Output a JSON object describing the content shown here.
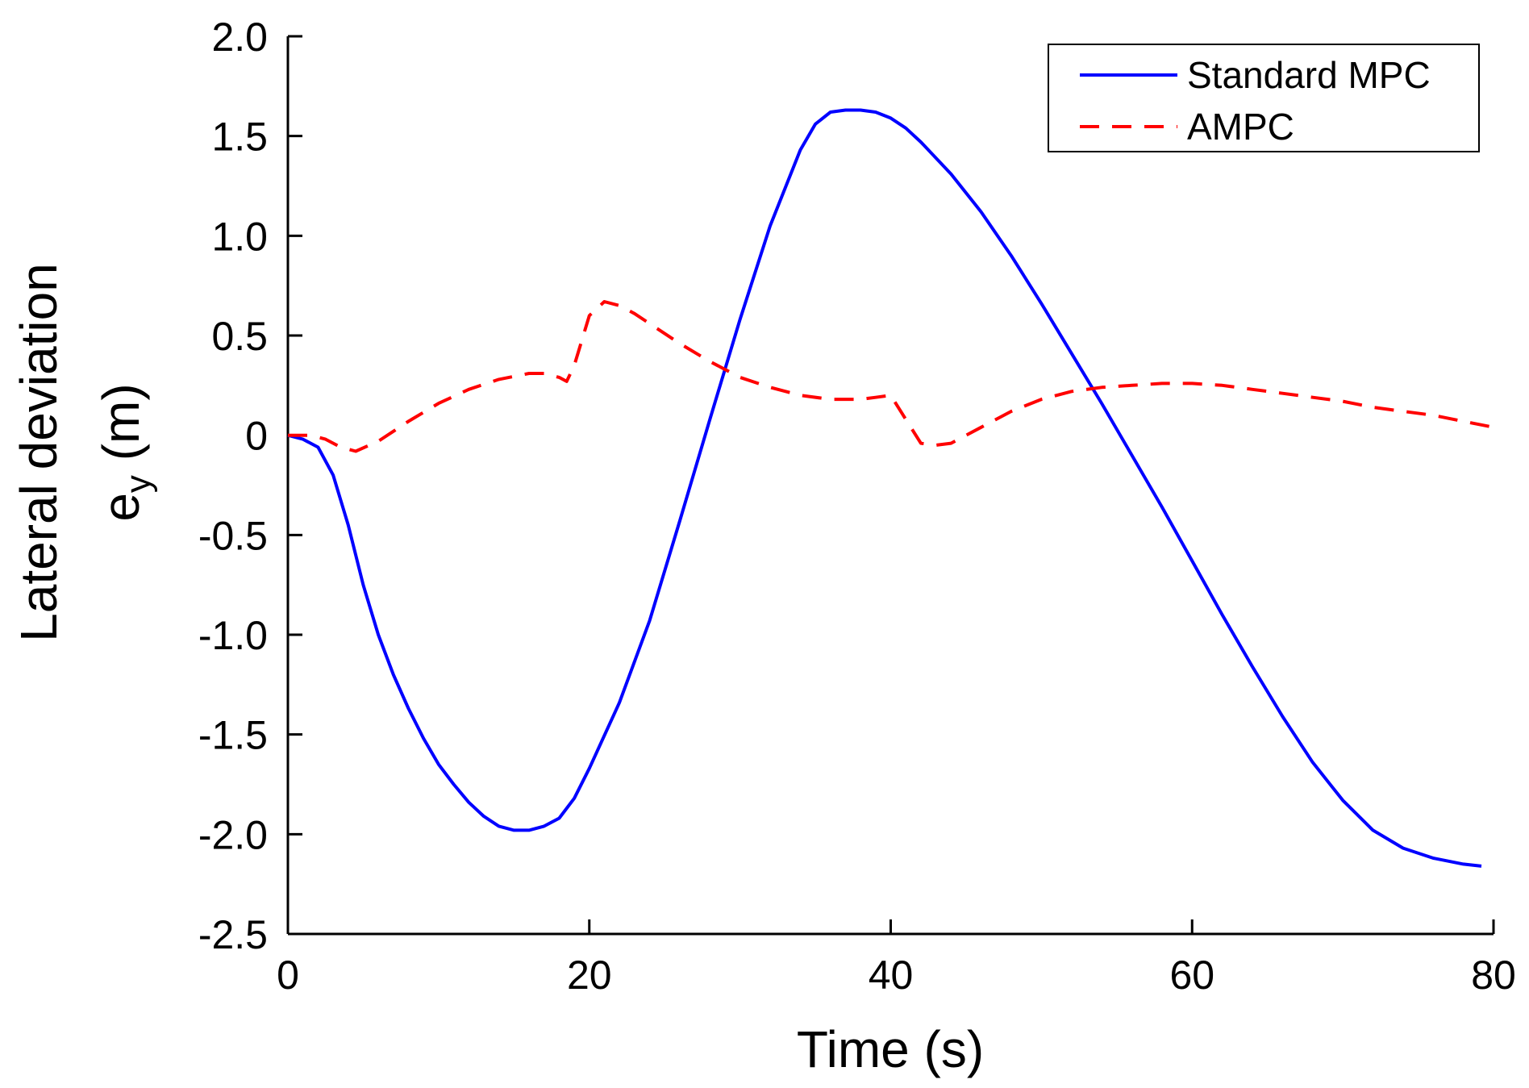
{
  "chart_data": {
    "type": "line",
    "title": "",
    "xlabel": "Time (s)",
    "ylabel_main": "Lateral deviation",
    "ylabel_symbol": "e",
    "ylabel_subscript": "y",
    "ylabel_unit": " (m)",
    "xlim": [
      0,
      80
    ],
    "ylim": [
      -2.5,
      2.0
    ],
    "x_ticks": [
      0,
      20,
      40,
      60,
      80
    ],
    "x_tick_labels": [
      "0",
      "20",
      "40",
      "60",
      "80"
    ],
    "y_ticks": [
      2.0,
      1.5,
      1.0,
      0.5,
      0,
      -0.5,
      -1.0,
      -1.5,
      -2.0,
      -2.5
    ],
    "y_tick_labels": [
      "2.0",
      "1.5",
      "1.0",
      "0.5",
      "0",
      "-0.5",
      "-1.0",
      "-1.5",
      "-2.0",
      "-2.5"
    ],
    "grid": false,
    "legend_position": "top-right",
    "series": [
      {
        "name": "Standard MPC",
        "color": "#0000ff",
        "style": "solid",
        "x": [
          0,
          1,
          2,
          3,
          4,
          5,
          6,
          7,
          8,
          9,
          10,
          11,
          12,
          13,
          14,
          15,
          16,
          17,
          18,
          19,
          20,
          22,
          24,
          26,
          28,
          30,
          32,
          34,
          35,
          36,
          37,
          38,
          39,
          40,
          41,
          42,
          44,
          46,
          48,
          50,
          52,
          54,
          56,
          58,
          60,
          62,
          64,
          66,
          68,
          70,
          72,
          74,
          76,
          78,
          79.2
        ],
        "y": [
          0,
          -0.02,
          -0.06,
          -0.2,
          -0.45,
          -0.75,
          -1.0,
          -1.2,
          -1.37,
          -1.52,
          -1.65,
          -1.75,
          -1.84,
          -1.91,
          -1.96,
          -1.98,
          -1.98,
          -1.96,
          -1.92,
          -1.82,
          -1.67,
          -1.34,
          -0.93,
          -0.43,
          0.08,
          0.58,
          1.05,
          1.43,
          1.56,
          1.62,
          1.63,
          1.63,
          1.62,
          1.59,
          1.54,
          1.47,
          1.31,
          1.12,
          0.9,
          0.66,
          0.41,
          0.16,
          -0.1,
          -0.36,
          -0.63,
          -0.9,
          -1.16,
          -1.41,
          -1.64,
          -1.83,
          -1.98,
          -2.07,
          -2.12,
          -2.15,
          -2.16
        ]
      },
      {
        "name": "AMPC",
        "color": "#ff0000",
        "style": "dashed",
        "x": [
          0,
          1.5,
          2.5,
          3.5,
          4.5,
          6,
          8,
          10,
          12,
          14,
          16,
          17,
          18,
          18.5,
          19,
          20,
          21,
          22,
          23,
          24,
          26,
          28,
          30,
          32,
          34,
          36,
          38,
          39,
          40,
          41,
          42,
          43,
          44,
          46,
          48,
          50,
          52,
          54,
          56,
          58,
          60,
          62,
          64,
          66,
          68,
          70,
          72,
          74,
          76,
          78,
          80
        ],
        "y": [
          0,
          0.0,
          -0.02,
          -0.06,
          -0.08,
          -0.03,
          0.07,
          0.16,
          0.23,
          0.28,
          0.31,
          0.31,
          0.29,
          0.27,
          0.35,
          0.6,
          0.67,
          0.65,
          0.61,
          0.56,
          0.46,
          0.37,
          0.29,
          0.24,
          0.2,
          0.18,
          0.18,
          0.19,
          0.2,
          0.08,
          -0.04,
          -0.05,
          -0.04,
          0.04,
          0.12,
          0.18,
          0.22,
          0.24,
          0.25,
          0.26,
          0.26,
          0.25,
          0.23,
          0.21,
          0.19,
          0.17,
          0.14,
          0.12,
          0.1,
          0.07,
          0.04
        ]
      }
    ]
  }
}
